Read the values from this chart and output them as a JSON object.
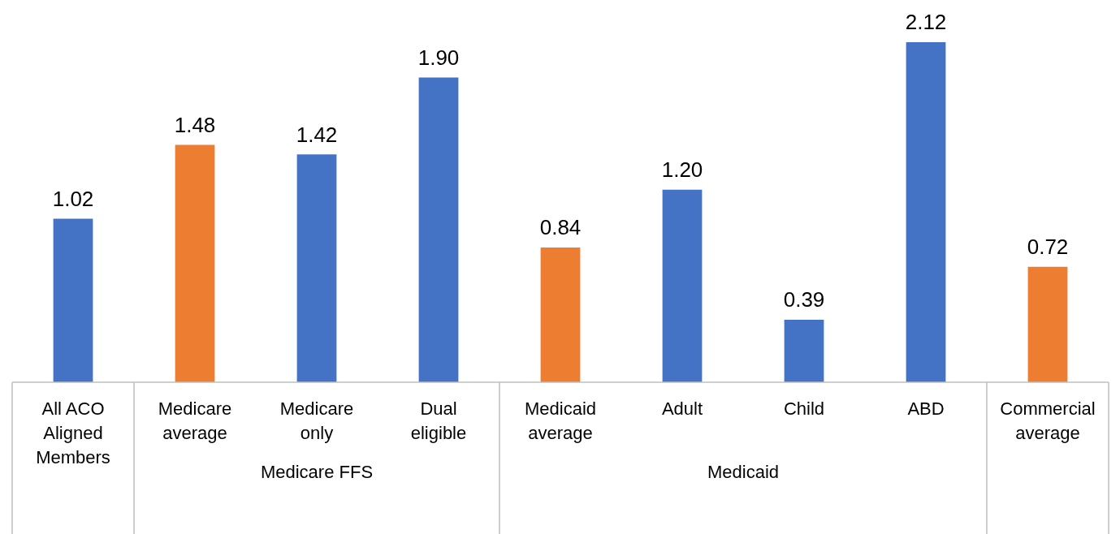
{
  "chart_data": {
    "type": "bar",
    "categories": [
      "All ACO Aligned Members",
      "Medicare average",
      "Medicare only",
      "Dual eligible",
      "Medicaid average",
      "Adult",
      "Child",
      "ABD",
      "Commercial average"
    ],
    "values": [
      1.02,
      1.48,
      1.42,
      1.9,
      0.84,
      1.2,
      0.39,
      2.12,
      0.72
    ],
    "colors": [
      "#4472c4",
      "#ed7d31",
      "#4472c4",
      "#4472c4",
      "#ed7d31",
      "#4472c4",
      "#4472c4",
      "#4472c4",
      "#ed7d31"
    ],
    "value_labels": [
      "1.02",
      "1.48",
      "1.42",
      "1.90",
      "0.84",
      "1.20",
      "0.39",
      "2.12",
      "0.72"
    ],
    "annotations": [
      "Medicare FFS",
      "Medicaid"
    ],
    "grid": false,
    "legend": false
  }
}
